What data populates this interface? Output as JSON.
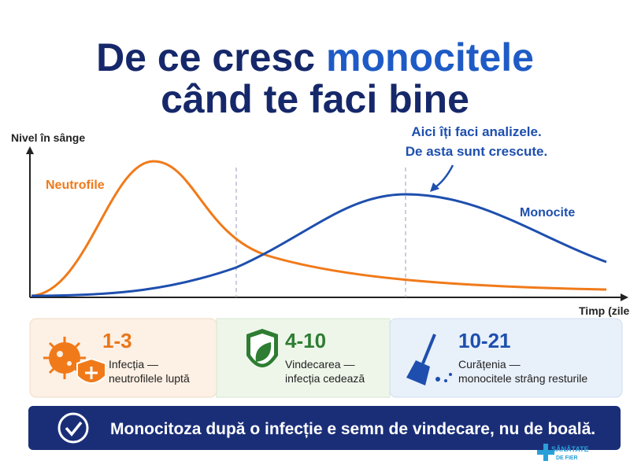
{
  "title": {
    "part1": "De ce cresc",
    "highlight": "monocitele",
    "line2": "când te faci bine"
  },
  "graph": {
    "y_label": "Nivel în sânge",
    "x_label": "Timp (zile",
    "annotation": [
      "Aici îți faci analizele.",
      "De asta sunt crescute."
    ],
    "neutrophil_label": "Neutrofile",
    "monocyte_label": "Monocite"
  },
  "phases": [
    {
      "range": "1-3",
      "lines": [
        "Infecția —",
        "neutrofilele luptă"
      ]
    },
    {
      "range": "4-10",
      "lines": [
        "Vindecarea —",
        "infecția cedează"
      ]
    },
    {
      "range": "10-21",
      "lines": [
        "Curățenia —",
        "monocitele strâng resturile"
      ]
    }
  ],
  "banner": "Monocitoza după o infecție e semn de vindecare, nu de boală.",
  "logo": [
    "SĂNĂTATE",
    "DE FIER"
  ]
}
